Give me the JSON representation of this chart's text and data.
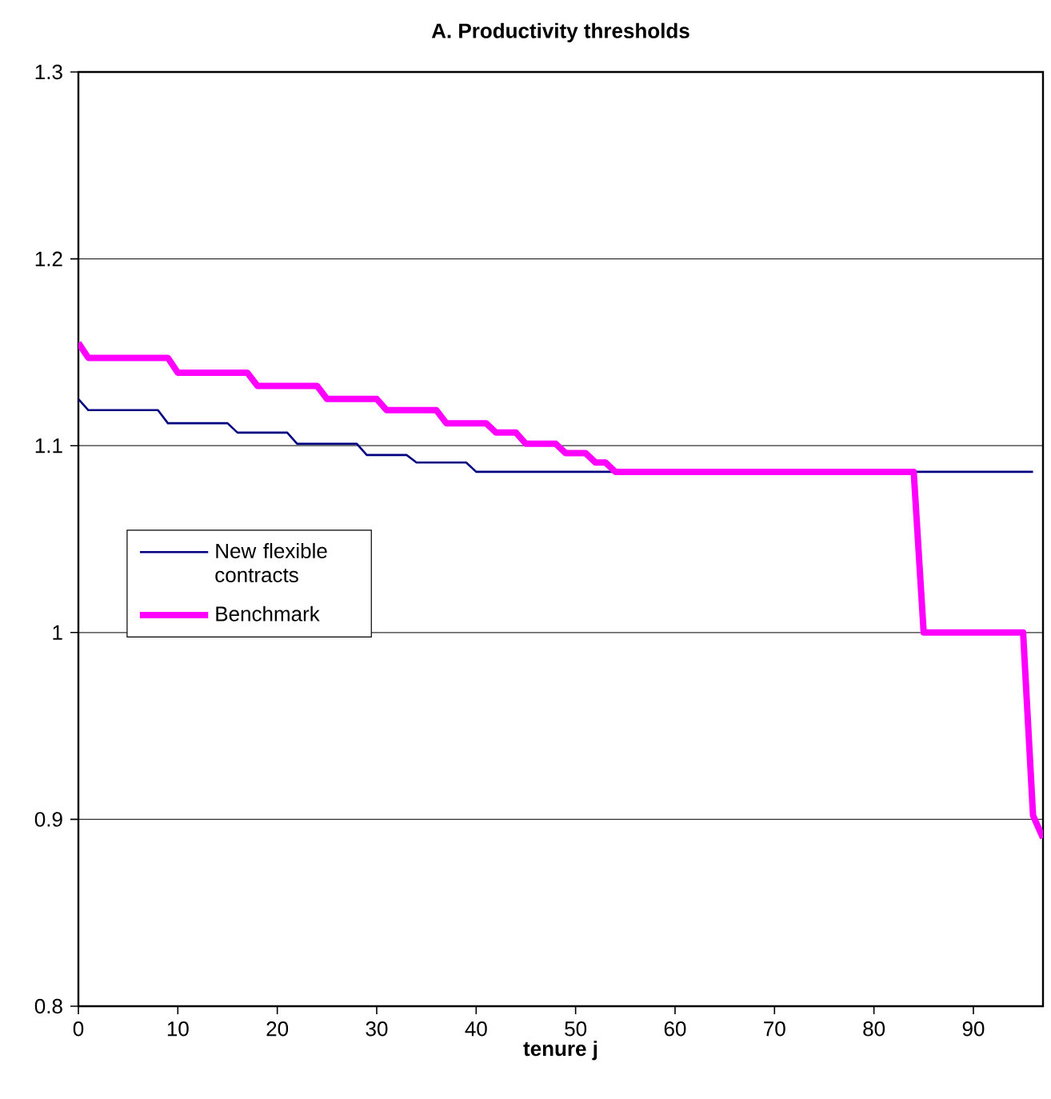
{
  "chart_data": {
    "type": "line",
    "title": "A. Productivity thresholds",
    "xlabel": "tenure j",
    "xlim": [
      0,
      97
    ],
    "ylim": [
      0.8,
      1.3
    ],
    "xticks": [
      0,
      10,
      20,
      30,
      40,
      50,
      60,
      70,
      80,
      90
    ],
    "yticks": [
      0.8,
      0.9,
      1,
      1.1,
      1.2,
      1.3
    ],
    "grid": "y",
    "legend": "left",
    "marker": "none",
    "line_style": "solid",
    "series": [
      {
        "name": "New flexible contracts",
        "color": "#000080",
        "x": [
          0,
          1,
          8,
          9,
          15,
          16,
          21,
          22,
          28,
          29,
          33,
          34,
          39,
          40,
          96
        ],
        "values": [
          1.125,
          1.119,
          1.119,
          1.112,
          1.112,
          1.107,
          1.107,
          1.101,
          1.101,
          1.095,
          1.095,
          1.091,
          1.091,
          1.086,
          1.086
        ]
      },
      {
        "name": "Benchmark",
        "color": "#ff00ff",
        "x": [
          0,
          1,
          9,
          10,
          17,
          18,
          24,
          25,
          30,
          31,
          36,
          37,
          41,
          42,
          44,
          45,
          48,
          49,
          51,
          52,
          53,
          54,
          84,
          85,
          95,
          96,
          97
        ],
        "values": [
          1.155,
          1.147,
          1.147,
          1.139,
          1.139,
          1.132,
          1.132,
          1.125,
          1.125,
          1.119,
          1.119,
          1.112,
          1.112,
          1.107,
          1.107,
          1.101,
          1.101,
          1.096,
          1.096,
          1.091,
          1.091,
          1.086,
          1.086,
          1.0,
          1.0,
          0.902,
          0.89
        ]
      }
    ]
  }
}
